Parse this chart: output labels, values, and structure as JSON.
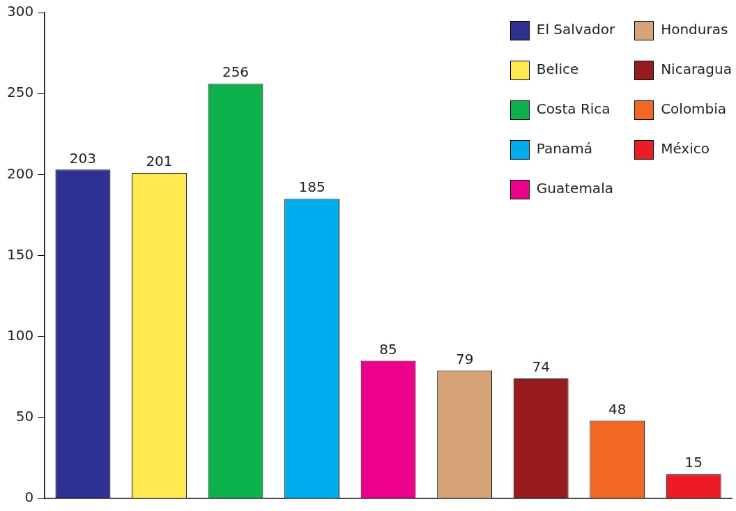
{
  "chart_data": {
    "type": "bar",
    "categories": [
      null,
      null,
      null,
      null,
      null,
      null,
      null,
      null,
      null
    ],
    "series": [
      {
        "name": "El Salvador",
        "color": "#2e3192",
        "values": [
          203,
          null,
          null,
          null,
          null,
          null,
          null,
          null,
          null
        ]
      },
      {
        "name": "Belice",
        "color": "#ffe94f",
        "values": [
          null,
          201,
          null,
          null,
          null,
          null,
          null,
          null,
          null
        ]
      },
      {
        "name": "Costa Rica",
        "color": "#0db14b",
        "values": [
          null,
          null,
          256,
          null,
          null,
          null,
          null,
          null,
          null
        ]
      },
      {
        "name": "Panamá",
        "color": "#00aeef",
        "values": [
          null,
          null,
          null,
          185,
          null,
          null,
          null,
          null,
          null
        ]
      },
      {
        "name": "Guatemala",
        "color": "#ec008c",
        "values": [
          null,
          null,
          null,
          null,
          85,
          null,
          null,
          null,
          null
        ]
      },
      {
        "name": "Honduras",
        "color": "#d6a477",
        "values": [
          null,
          null,
          null,
          null,
          null,
          79,
          null,
          null,
          null
        ]
      },
      {
        "name": "Nicaragua",
        "color": "#981b1e",
        "values": [
          null,
          null,
          null,
          null,
          null,
          null,
          74,
          null,
          null
        ]
      },
      {
        "name": "Colombia",
        "color": "#f26722",
        "values": [
          null,
          null,
          null,
          null,
          null,
          null,
          null,
          48,
          null
        ]
      },
      {
        "name": "México",
        "color": "#ed1c24",
        "values": [
          null,
          null,
          null,
          null,
          null,
          null,
          null,
          null,
          15
        ]
      }
    ],
    "ylim": [
      0,
      300
    ],
    "yticks": [
      0,
      50,
      100,
      150,
      200,
      250,
      300
    ],
    "grid": false,
    "legend": "top right",
    "data_labels": true
  }
}
